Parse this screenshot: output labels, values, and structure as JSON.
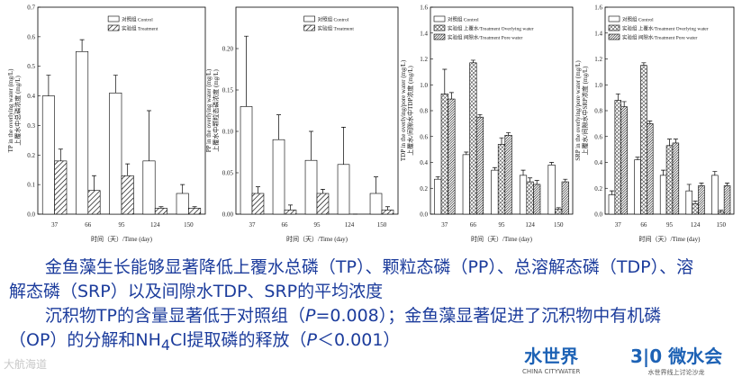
{
  "chart_data": [
    {
      "type": "bar",
      "y_label": "TP in the overlying water (mg/L)",
      "y_label_cn": "上覆水中总磷浓度 (mg/L)",
      "x_label": "时间（天）/Time (day)",
      "categories": [
        "37",
        "66",
        "95",
        "124",
        "150"
      ],
      "legend": "upper right",
      "ylim": [
        0,
        0.7
      ],
      "yticks": [
        {
          "value": 0,
          "label": "0.0"
        },
        0.1,
        0.2,
        0.3,
        0.4,
        0.5,
        0.6,
        0.7
      ],
      "series": [
        {
          "name": "对照组  Control",
          "color": "#ffffff",
          "hatch": "none",
          "values": [
            0.4,
            0.55,
            0.41,
            0.18,
            0.07
          ],
          "errors": [
            0.07,
            0.04,
            0.06,
            0.17,
            0.03
          ]
        },
        {
          "name": "实验组  Treatment",
          "color": "#ffffff",
          "hatch": "diagonal",
          "values": [
            0.18,
            0.08,
            0.13,
            0.02,
            0.02
          ],
          "errors": [
            0.04,
            0.05,
            0.04,
            0.005,
            0.005
          ]
        }
      ]
    },
    {
      "type": "bar",
      "y_label": "PP in the overlying water (mg/L)",
      "y_label_cn": "上覆水中颗粒态磷浓度 (mg/L)",
      "x_label": "时间（天）/Time (day)",
      "categories": [
        "37",
        "66",
        "95",
        "124",
        "150"
      ],
      "legend": "upper right",
      "ylim": [
        0,
        0.25
      ],
      "yticks": [
        {
          "value": 0,
          "label": "0.00"
        },
        0.05,
        {
          "value": 0.1,
          "label": "0.10"
        },
        0.15,
        {
          "value": 0.2,
          "label": "0.20"
        }
      ],
      "series": [
        {
          "name": "对照组  Control",
          "color": "#ffffff",
          "hatch": "none",
          "values": [
            0.13,
            0.09,
            0.065,
            0.06,
            0.025
          ],
          "errors": [
            0.085,
            0.03,
            0.035,
            0.045,
            0.02
          ]
        },
        {
          "name": "实验组  Treatment",
          "color": "#ffffff",
          "hatch": "diagonal",
          "values": [
            0.025,
            0.005,
            0.025,
            0,
            0.005
          ],
          "errors": [
            0.008,
            0.006,
            0.005,
            0,
            0.004
          ]
        }
      ]
    },
    {
      "type": "bar",
      "y_label": "TDP in the overlying/pore water (mg/L)",
      "y_label_cn": "上覆水/间隙水中TDP浓度 (mg/L)",
      "x_label": "时间（天）/Time (day)",
      "categories": [
        "37",
        "66",
        "95",
        "124",
        "150"
      ],
      "legend": "upper left",
      "ylim": [
        0,
        1.6
      ],
      "yticks": [
        {
          "value": 0,
          "label": "0.0"
        },
        0.2,
        0.4,
        0.6,
        0.8,
        {
          "value": 1,
          "label": "1.0"
        },
        1.2,
        1.4,
        1.6
      ],
      "series": [
        {
          "name": "对照组  Control",
          "color": "#ffffff",
          "hatch": "none",
          "values": [
            0.27,
            0.46,
            0.34,
            0.3,
            0.38
          ],
          "errors": [
            0.02,
            0.02,
            0.02,
            0.04,
            0.02
          ]
        },
        {
          "name": "实验组  上覆水/Treatment  Overlying water",
          "color": "#ffffff",
          "hatch": "cross",
          "values": [
            0.93,
            1.17,
            0.54,
            0.25,
            0.04
          ],
          "errors": [
            0.19,
            0.02,
            0.05,
            0.03,
            0.01
          ]
        },
        {
          "name": "实验组  间隙水/Treatment  Pore water",
          "color": "#ffffff",
          "hatch": "dense",
          "values": [
            0.89,
            0.75,
            0.61,
            0.23,
            0.25
          ],
          "errors": [
            0.05,
            0.02,
            0.02,
            0.03,
            0.02
          ]
        }
      ]
    },
    {
      "type": "bar",
      "y_label": "SRP in the overlying/pore water (mg/L)",
      "y_label_cn": "上覆水/间隙水中SRP浓度 (mg/L)",
      "x_label": "时间（天）/Time (day)",
      "categories": [
        "37",
        "66",
        "95",
        "124",
        "150"
      ],
      "legend": "upper left",
      "ylim": [
        0,
        1.6
      ],
      "yticks": [
        {
          "value": 0,
          "label": "0.0"
        },
        0.2,
        0.4,
        0.6,
        0.8,
        {
          "value": 1,
          "label": "1.0"
        },
        1.2,
        1.4,
        1.6
      ],
      "series": [
        {
          "name": "对照组  Control",
          "color": "#ffffff",
          "hatch": "none",
          "values": [
            0.15,
            0.42,
            0.3,
            0.18,
            0.3
          ],
          "errors": [
            0.03,
            0.02,
            0.04,
            0.05,
            0.03
          ]
        },
        {
          "name": "实验组  上覆水/Treatment  Overlying water",
          "color": "#ffffff",
          "hatch": "cross",
          "values": [
            0.88,
            1.15,
            0.53,
            0.08,
            0.02
          ],
          "errors": [
            0.05,
            0.02,
            0.05,
            0.02,
            0.01
          ]
        },
        {
          "name": "实验组  间隙水/Treatment  Pore water",
          "color": "#ffffff",
          "hatch": "dense",
          "values": [
            0.83,
            0.7,
            0.55,
            0.22,
            0.22
          ],
          "errors": [
            0.04,
            0.02,
            0.03,
            0.02,
            0.02
          ]
        }
      ]
    }
  ],
  "summary": {
    "paragraph_1": "金鱼藻生长能够显著降低上覆水总磷（TP）、颗粒态磷（PP）、总溶解态磷（TDP）、溶解态磷（SRP）以及间隙水TDP、SRP的平均浓度",
    "paragraph_2": [
      "沉积物TP的含量显著低于对照组（",
      "P",
      "=0.008）；金鱼藻显著促进了沉积物中有机磷（OP）的分解和NH",
      "4",
      "Cl提取磷的释放（",
      "P",
      "＜0.001）"
    ]
  },
  "watermark": "大航海道",
  "logo_1": {
    "name": "水世界",
    "sub": "CHINA CITYWATER"
  },
  "logo_2": {
    "name": "3|0 微水会",
    "sub": "水世界线上讨论沙龙"
  }
}
